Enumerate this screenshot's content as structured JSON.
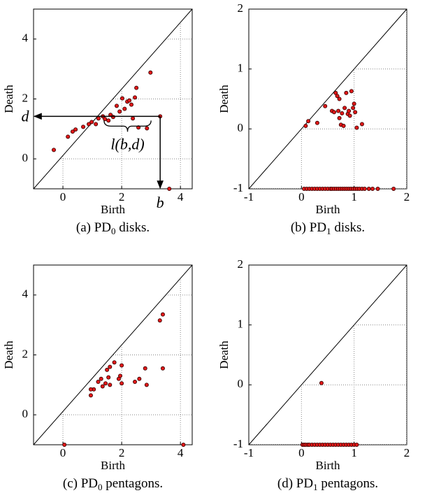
{
  "chart_data": [
    {
      "type": "scatter",
      "caption": [
        "(a) PD",
        "0",
        " disks."
      ],
      "xlabel": "Birth",
      "ylabel": "Death",
      "xlim": [
        -1,
        4.4
      ],
      "ylim": [
        -1,
        5
      ],
      "xticks": [
        0,
        2,
        4
      ],
      "yticks": [
        0,
        2,
        4
      ],
      "grid": true,
      "color": "#e01818",
      "annotations": [
        "d",
        "b",
        "l(b,d)"
      ],
      "x": [
        -0.31,
        0.17,
        0.33,
        0.43,
        0.69,
        0.88,
        0.98,
        1.12,
        1.21,
        1.36,
        1.43,
        1.55,
        1.62,
        1.71,
        1.83,
        1.93,
        2.02,
        2.1,
        2.19,
        2.26,
        2.33,
        2.45,
        2.5,
        2.57,
        2.38,
        2.86,
        2.98,
        3.31,
        3.62
      ],
      "values": [
        0.3,
        0.74,
        0.91,
        0.98,
        1.07,
        1.16,
        1.23,
        1.16,
        1.35,
        1.42,
        1.33,
        1.28,
        1.47,
        1.4,
        1.77,
        1.58,
        2.02,
        1.67,
        1.91,
        1.95,
        1.81,
        2.05,
        2.37,
        1.05,
        1.35,
        1.02,
        2.88,
        1.42,
        -1
      ]
    },
    {
      "type": "scatter",
      "caption": [
        "(b) PD",
        "1",
        " disks."
      ],
      "xlabel": "Birth",
      "ylabel": "Death",
      "xlim": [
        -1,
        2
      ],
      "ylim": [
        -1,
        2
      ],
      "xticks": [
        -1,
        0,
        1,
        2
      ],
      "yticks": [
        -1,
        0,
        1,
        2
      ],
      "grid": true,
      "color": "#e01818",
      "x": [
        0.08,
        0.13,
        0.3,
        0.45,
        0.58,
        0.62,
        0.65,
        0.68,
        0.7,
        0.72,
        0.75,
        0.77,
        0.8,
        0.82,
        0.85,
        0.88,
        0.9,
        0.92,
        0.95,
        0.98,
        1.0,
        1.02,
        1.05,
        1.15,
        0.72,
        0.05,
        0.1,
        0.15,
        0.2,
        0.25,
        0.3,
        0.35,
        0.4,
        0.45,
        0.5,
        0.55,
        0.58,
        0.62,
        0.66,
        0.7,
        0.74,
        0.78,
        0.82,
        0.86,
        0.9,
        0.94,
        0.98,
        1.02,
        1.06,
        1.1,
        1.15,
        1.2,
        1.28,
        1.35,
        1.45,
        1.75
      ],
      "values": [
        0.05,
        0.13,
        0.1,
        0.38,
        0.3,
        0.28,
        0.6,
        0.55,
        0.3,
        0.18,
        0.07,
        0.26,
        0.05,
        0.35,
        0.6,
        0.25,
        0.3,
        0.22,
        0.63,
        0.35,
        0.42,
        0.28,
        0.02,
        0.08,
        0.5,
        -1,
        -1,
        -1,
        -1,
        -1,
        -1,
        -1,
        -1,
        -1,
        -1,
        -1,
        -1,
        -1,
        -1,
        -1,
        -1,
        -1,
        -1,
        -1,
        -1,
        -1,
        -1,
        -1,
        -1,
        -1,
        -1,
        -1,
        -1,
        -1,
        -1,
        -1
      ]
    },
    {
      "type": "scatter",
      "caption": [
        "(c) PD",
        "0",
        " pentagons."
      ],
      "xlabel": "Birth",
      "ylabel": "Death",
      "xlim": [
        -1,
        4.4
      ],
      "ylim": [
        -1,
        5
      ],
      "xticks": [
        0,
        2,
        4
      ],
      "yticks": [
        0,
        2,
        4
      ],
      "grid": true,
      "color": "#e01818",
      "x": [
        3.4,
        3.3,
        3.4,
        2.8,
        2.85,
        2.6,
        2.45,
        2.0,
        1.95,
        1.9,
        2.0,
        1.75,
        1.6,
        1.55,
        1.5,
        1.45,
        1.35,
        1.3,
        1.2,
        1.05,
        0.95,
        0.95,
        1.6,
        0.05,
        4.1
      ],
      "values": [
        3.35,
        3.15,
        1.55,
        1.55,
        1.0,
        1.2,
        1.1,
        1.65,
        1.3,
        1.2,
        1.05,
        1.75,
        1.6,
        1.25,
        1.5,
        1.05,
        0.95,
        1.2,
        1.1,
        0.85,
        0.85,
        0.65,
        1.0,
        -1,
        -1
      ]
    },
    {
      "type": "scatter",
      "caption": [
        "(d) PD",
        "1",
        " pentagons."
      ],
      "xlabel": "Birth",
      "ylabel": "Death",
      "xlim": [
        -1,
        2
      ],
      "ylim": [
        -1,
        2
      ],
      "xticks": [
        -1,
        0,
        1,
        2
      ],
      "yticks": [
        -1,
        0,
        1,
        2
      ],
      "grid": true,
      "color": "#e01818",
      "x": [
        0.38,
        0.02,
        0.05,
        0.08,
        0.12,
        0.15,
        0.2,
        0.25,
        0.3,
        0.35,
        0.4,
        0.45,
        0.5,
        0.55,
        0.6,
        0.65,
        0.7,
        0.75,
        0.8,
        0.85,
        0.9,
        0.95,
        1.0,
        1.05
      ],
      "values": [
        0.03,
        -1,
        -1,
        -1,
        -1,
        -1,
        -1,
        -1,
        -1,
        -1,
        -1,
        -1,
        -1,
        -1,
        -1,
        -1,
        -1,
        -1,
        -1,
        -1,
        -1,
        -1,
        -1,
        -1
      ]
    }
  ]
}
